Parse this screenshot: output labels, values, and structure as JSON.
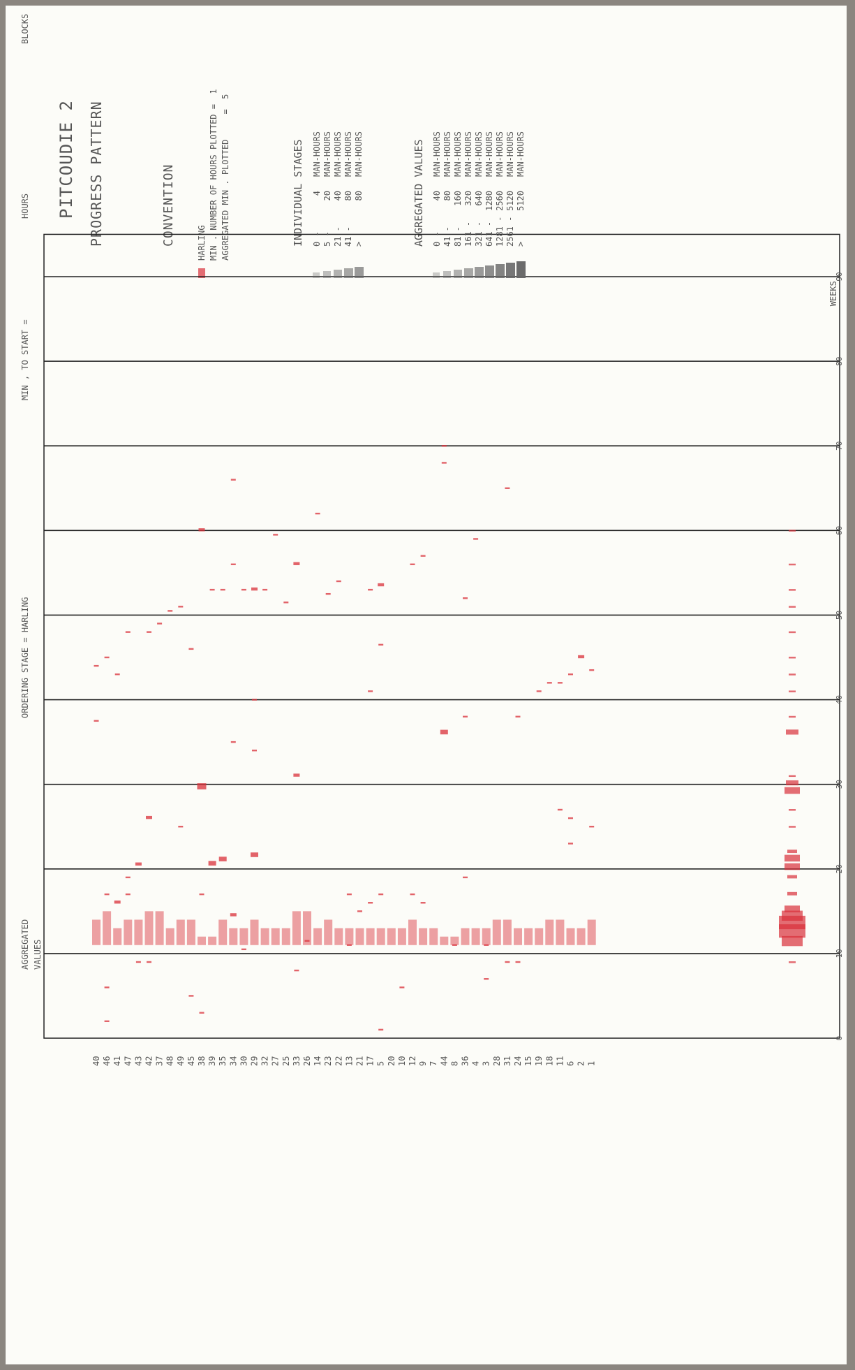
{
  "title": {
    "main": "PITCOUDIE 2",
    "subtitle": "PROGRESS PATTERN"
  },
  "convention": {
    "heading": "CONVENTION",
    "lines": [
      "HARLING",
      "MIN . NUMBER OF HOURS PLOTTED =  1",
      "AGGREGATED MIN . PLOTTED     =  5"
    ]
  },
  "individual_stages": {
    "heading": "INDIVIDUAL STAGES",
    "rows": [
      {
        "from": "0 -",
        "to": "4",
        "unit": "MAN-HOURS"
      },
      {
        "from": "5 -",
        "to": "20",
        "unit": "MAN-HOURS"
      },
      {
        "from": "21 -",
        "to": "40",
        "unit": "MAN-HOURS"
      },
      {
        "from": "41 -",
        "to": "80",
        "unit": "MAN-HOURS"
      },
      {
        "from": ">",
        "to": "80",
        "unit": "MAN-HOURS"
      }
    ]
  },
  "aggregated_values": {
    "heading": "AGGREGATED VALUES",
    "rows": [
      {
        "from": "0 -",
        "to": "40",
        "unit": "MAN-HOURS"
      },
      {
        "from": "41 -",
        "to": "80",
        "unit": "MAN-HOURS"
      },
      {
        "from": "81 -",
        "to": "160",
        "unit": "MAN-HOURS"
      },
      {
        "from": "161 -",
        "to": "320",
        "unit": "MAN-HOURS"
      },
      {
        "from": "321 -",
        "to": "640",
        "unit": "MAN-HOURS"
      },
      {
        "from": "641 -",
        "to": "1280",
        "unit": "MAN-HOURS"
      },
      {
        "from": "1281 -",
        "to": "2560",
        "unit": "MAN-HOURS"
      },
      {
        "from": "2561 -",
        "to": "5120",
        "unit": "MAN-HOURS"
      },
      {
        "from": ">",
        "to": "5120",
        "unit": "MAN-HOURS"
      }
    ]
  },
  "left_axis_labels": {
    "blocks": "BLOCKS",
    "hours": "HOURS",
    "min_to_start": "MIN , TO START =",
    "ordering": "ORDERING STAGE = HARLING",
    "aggregated": "AGGREGATED",
    "values": "VALUES"
  },
  "colors": {
    "paper": "#fcfcf8",
    "frame": "#8b8680",
    "ink": "#555555",
    "grid": "#222222",
    "marks": "#d9303a"
  },
  "chart_data": {
    "type": "bar",
    "xlabel": "WEEKS",
    "xlim": [
      0,
      95
    ],
    "xticks": [
      0,
      10,
      20,
      30,
      40,
      50,
      60,
      70,
      80,
      90
    ],
    "grid": true,
    "block_labels": [
      "40",
      "46",
      "41",
      "47",
      "43",
      "42",
      "37",
      "48",
      "49",
      "45",
      "38",
      "39",
      "35",
      "34",
      "30",
      "29",
      "32",
      "27",
      "25",
      "33",
      "26",
      "14",
      "23",
      "22",
      "13",
      "21",
      "17",
      "5",
      "20",
      "10",
      "12",
      "9",
      "7",
      "44",
      "8",
      "36",
      "4",
      "3",
      "28",
      "31",
      "24",
      "15",
      "19",
      "18",
      "11",
      "6",
      "2",
      "1"
    ],
    "aggregated_label": "AGGREGATED VALUES",
    "rows": [
      {
        "block": "40",
        "marks": [
          {
            "week": 37.5,
            "lvl": 1
          },
          {
            "week": 44,
            "lvl": 1
          }
        ],
        "span": [
          11,
          14
        ]
      },
      {
        "block": "46",
        "marks": [
          {
            "week": 2,
            "lvl": 1
          },
          {
            "week": 6,
            "lvl": 1
          },
          {
            "week": 17,
            "lvl": 1
          },
          {
            "week": 45,
            "lvl": 1
          }
        ],
        "span": [
          11,
          15
        ]
      },
      {
        "block": "41",
        "marks": [
          {
            "week": 16,
            "lvl": 2
          },
          {
            "week": 43,
            "lvl": 1
          }
        ],
        "span": [
          11,
          13
        ]
      },
      {
        "block": "47",
        "marks": [
          {
            "week": 17,
            "lvl": 1
          },
          {
            "week": 19,
            "lvl": 1
          },
          {
            "week": 48,
            "lvl": 1
          }
        ],
        "span": [
          11,
          14
        ]
      },
      {
        "block": "43",
        "marks": [
          {
            "week": 9,
            "lvl": 1
          },
          {
            "week": 20.5,
            "lvl": 2
          }
        ],
        "span": [
          11,
          14
        ]
      },
      {
        "block": "42",
        "marks": [
          {
            "week": 9,
            "lvl": 1
          },
          {
            "week": 26,
            "lvl": 2
          },
          {
            "week": 48,
            "lvl": 1
          }
        ],
        "span": [
          11,
          15
        ]
      },
      {
        "block": "37",
        "marks": [
          {
            "week": 49,
            "lvl": 1
          }
        ],
        "span": [
          11,
          15
        ]
      },
      {
        "block": "48",
        "marks": [
          {
            "week": 50.5,
            "lvl": 1
          }
        ],
        "span": [
          11,
          13
        ]
      },
      {
        "block": "49",
        "marks": [
          {
            "week": 25,
            "lvl": 1
          },
          {
            "week": 51,
            "lvl": 1
          }
        ],
        "span": [
          11,
          14
        ]
      },
      {
        "block": "45",
        "marks": [
          {
            "week": 5,
            "lvl": 1
          },
          {
            "week": 46,
            "lvl": 1
          }
        ],
        "span": [
          11,
          14
        ]
      },
      {
        "block": "38",
        "marks": [
          {
            "week": 3,
            "lvl": 1
          },
          {
            "week": 17,
            "lvl": 1
          },
          {
            "week": 29.5,
            "lvl": 4
          },
          {
            "week": 60,
            "lvl": 2
          }
        ],
        "span": [
          11,
          12
        ]
      },
      {
        "block": "39",
        "marks": [
          {
            "week": 20.5,
            "lvl": 3
          },
          {
            "week": 53,
            "lvl": 1
          }
        ],
        "span": [
          11,
          12
        ]
      },
      {
        "block": "35",
        "marks": [
          {
            "week": 21,
            "lvl": 3
          },
          {
            "week": 53,
            "lvl": 1
          }
        ],
        "span": [
          11,
          14
        ]
      },
      {
        "block": "34",
        "marks": [
          {
            "week": 14.5,
            "lvl": 2
          },
          {
            "week": 35,
            "lvl": 1
          },
          {
            "week": 56,
            "lvl": 1
          },
          {
            "week": 66,
            "lvl": 1
          }
        ],
        "span": [
          11,
          13
        ]
      },
      {
        "block": "30",
        "marks": [
          {
            "week": 10.5,
            "lvl": 1
          },
          {
            "week": 53,
            "lvl": 1
          }
        ],
        "span": [
          11,
          13
        ]
      },
      {
        "block": "29",
        "marks": [
          {
            "week": 21.5,
            "lvl": 3
          },
          {
            "week": 34,
            "lvl": 1
          },
          {
            "week": 40,
            "lvl": 1
          },
          {
            "week": 53,
            "lvl": 2
          }
        ],
        "span": [
          11,
          14
        ]
      },
      {
        "block": "32",
        "marks": [
          {
            "week": 53,
            "lvl": 1
          }
        ],
        "span": [
          11,
          13
        ]
      },
      {
        "block": "27",
        "marks": [
          {
            "week": 59.5,
            "lvl": 1
          }
        ],
        "span": [
          11,
          13
        ]
      },
      {
        "block": "25",
        "marks": [
          {
            "week": 51.5,
            "lvl": 1
          }
        ],
        "span": [
          11,
          13
        ]
      },
      {
        "block": "33",
        "marks": [
          {
            "week": 8,
            "lvl": 1
          },
          {
            "week": 31,
            "lvl": 2
          },
          {
            "week": 56,
            "lvl": 2
          }
        ],
        "span": [
          11,
          15
        ]
      },
      {
        "block": "26",
        "marks": [
          {
            "week": 11.5,
            "lvl": 1
          }
        ],
        "span": [
          11,
          15
        ]
      },
      {
        "block": "14",
        "marks": [
          {
            "week": 62,
            "lvl": 1
          }
        ],
        "span": [
          11,
          13
        ]
      },
      {
        "block": "23",
        "marks": [
          {
            "week": 52.5,
            "lvl": 1
          }
        ],
        "span": [
          11,
          14
        ]
      },
      {
        "block": "22",
        "marks": [
          {
            "week": 54,
            "lvl": 1
          }
        ],
        "span": [
          11,
          13
        ]
      },
      {
        "block": "13",
        "marks": [
          {
            "week": 11,
            "lvl": 1
          },
          {
            "week": 17,
            "lvl": 1
          }
        ],
        "span": [
          11,
          13
        ]
      },
      {
        "block": "21",
        "marks": [
          {
            "week": 15,
            "lvl": 1
          }
        ],
        "span": [
          11,
          13
        ]
      },
      {
        "block": "17",
        "marks": [
          {
            "week": 16,
            "lvl": 1
          },
          {
            "week": 41,
            "lvl": 1
          },
          {
            "week": 53,
            "lvl": 1
          }
        ],
        "span": [
          11,
          13
        ]
      },
      {
        "block": "5",
        "marks": [
          {
            "week": 1,
            "lvl": 1
          },
          {
            "week": 17,
            "lvl": 1
          },
          {
            "week": 46.5,
            "lvl": 1
          },
          {
            "week": 53.5,
            "lvl": 2
          }
        ],
        "span": [
          11,
          13
        ]
      },
      {
        "block": "20",
        "marks": [],
        "span": [
          11,
          13
        ]
      },
      {
        "block": "10",
        "marks": [
          {
            "week": 6,
            "lvl": 1
          }
        ],
        "span": [
          11,
          13
        ]
      },
      {
        "block": "12",
        "marks": [
          {
            "week": 17,
            "lvl": 1
          },
          {
            "week": 56,
            "lvl": 1
          }
        ],
        "span": [
          11,
          14
        ]
      },
      {
        "block": "9",
        "marks": [
          {
            "week": 16,
            "lvl": 1
          },
          {
            "week": 57,
            "lvl": 1
          }
        ],
        "span": [
          11,
          13
        ]
      },
      {
        "block": "7",
        "marks": [],
        "span": [
          11,
          13
        ]
      },
      {
        "block": "44",
        "marks": [
          {
            "week": 36,
            "lvl": 3
          },
          {
            "week": 68,
            "lvl": 1
          },
          {
            "week": 70,
            "lvl": 1
          }
        ],
        "span": [
          11,
          12
        ]
      },
      {
        "block": "8",
        "marks": [
          {
            "week": 11,
            "lvl": 1
          }
        ],
        "span": [
          11,
          12
        ]
      },
      {
        "block": "36",
        "marks": [
          {
            "week": 19,
            "lvl": 1
          },
          {
            "week": 38,
            "lvl": 1
          },
          {
            "week": 52,
            "lvl": 1
          }
        ],
        "span": [
          11,
          13
        ]
      },
      {
        "block": "4",
        "marks": [
          {
            "week": 59,
            "lvl": 1
          }
        ],
        "span": [
          11,
          13
        ]
      },
      {
        "block": "3",
        "marks": [
          {
            "week": 7,
            "lvl": 1
          },
          {
            "week": 11,
            "lvl": 1
          }
        ],
        "span": [
          11,
          13
        ]
      },
      {
        "block": "28",
        "marks": [],
        "span": [
          11,
          14
        ]
      },
      {
        "block": "31",
        "marks": [
          {
            "week": 9,
            "lvl": 1
          },
          {
            "week": 65,
            "lvl": 1
          }
        ],
        "span": [
          11,
          14
        ]
      },
      {
        "block": "24",
        "marks": [
          {
            "week": 9,
            "lvl": 1
          },
          {
            "week": 38,
            "lvl": 1
          }
        ],
        "span": [
          11,
          13
        ]
      },
      {
        "block": "15",
        "marks": [],
        "span": [
          11,
          13
        ]
      },
      {
        "block": "19",
        "marks": [
          {
            "week": 41,
            "lvl": 1
          }
        ],
        "span": [
          11,
          13
        ]
      },
      {
        "block": "18",
        "marks": [
          {
            "week": 42,
            "lvl": 1
          }
        ],
        "span": [
          11,
          14
        ]
      },
      {
        "block": "11",
        "marks": [
          {
            "week": 27,
            "lvl": 1
          },
          {
            "week": 42,
            "lvl": 1
          }
        ],
        "span": [
          11,
          14
        ]
      },
      {
        "block": "6",
        "marks": [
          {
            "week": 23,
            "lvl": 1
          },
          {
            "week": 26,
            "lvl": 1
          },
          {
            "week": 43,
            "lvl": 1
          }
        ],
        "span": [
          11,
          13
        ]
      },
      {
        "block": "2",
        "marks": [
          {
            "week": 45,
            "lvl": 2
          }
        ],
        "span": [
          11,
          13
        ]
      },
      {
        "block": "1",
        "marks": [
          {
            "week": 25,
            "lvl": 1
          },
          {
            "week": 43.5,
            "lvl": 1
          }
        ],
        "span": [
          11,
          14
        ]
      }
    ],
    "aggregated": [
      {
        "week": 9,
        "lvl": 1
      },
      {
        "week": 11,
        "lvl": 6
      },
      {
        "week": 12,
        "lvl": 8
      },
      {
        "week": 13,
        "lvl": 8
      },
      {
        "week": 14,
        "lvl": 6
      },
      {
        "week": 15,
        "lvl": 4
      },
      {
        "week": 17,
        "lvl": 2
      },
      {
        "week": 19,
        "lvl": 2
      },
      {
        "week": 20,
        "lvl": 4
      },
      {
        "week": 21,
        "lvl": 4
      },
      {
        "week": 22,
        "lvl": 2
      },
      {
        "week": 25,
        "lvl": 1
      },
      {
        "week": 27,
        "lvl": 1
      },
      {
        "week": 29,
        "lvl": 4
      },
      {
        "week": 30,
        "lvl": 3
      },
      {
        "week": 31,
        "lvl": 1
      },
      {
        "week": 36,
        "lvl": 3
      },
      {
        "week": 38,
        "lvl": 1
      },
      {
        "week": 41,
        "lvl": 1
      },
      {
        "week": 43,
        "lvl": 1
      },
      {
        "week": 45,
        "lvl": 1
      },
      {
        "week": 48,
        "lvl": 1
      },
      {
        "week": 51,
        "lvl": 1
      },
      {
        "week": 53,
        "lvl": 1
      },
      {
        "week": 56,
        "lvl": 1
      },
      {
        "week": 60,
        "lvl": 1
      }
    ]
  }
}
